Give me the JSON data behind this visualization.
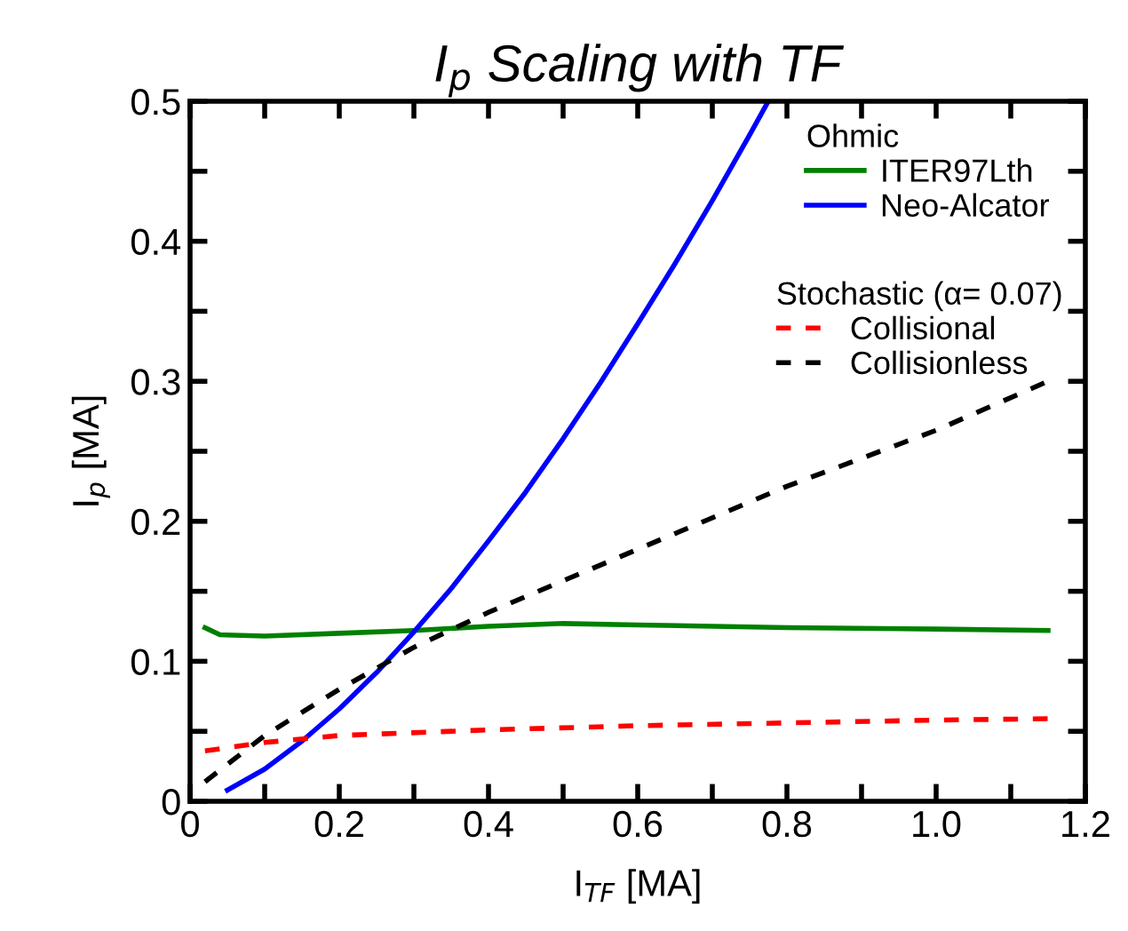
{
  "chart_data": {
    "type": "line",
    "title": "I$_{p}$ Scaling with TF",
    "xlabel": "I$_{TF}$ [MA]",
    "ylabel": "I$_{p}$ [MA]",
    "legend_title": "Ohmic",
    "annotations": [
      "Stochastic (α= 0.07)"
    ],
    "xlim": [
      0,
      1.2
    ],
    "ylim": [
      0,
      0.5
    ],
    "xticks": [
      0,
      {
        "value": 0.1,
        "label": null
      },
      0.2,
      {
        "value": 0.3,
        "label": null
      },
      0.4,
      {
        "value": 0.5,
        "label": null
      },
      0.6,
      {
        "value": 0.7,
        "label": null
      },
      0.8,
      {
        "value": 0.9,
        "label": null
      },
      {
        "value": 1.0,
        "label": "1.0"
      },
      {
        "value": 1.1,
        "label": null
      },
      1.2
    ],
    "yticks": [
      0,
      {
        "value": 0.05,
        "label": null
      },
      0.1,
      {
        "value": 0.15,
        "label": null
      },
      0.2,
      {
        "value": 0.25,
        "label": null
      },
      0.3,
      {
        "value": 0.35,
        "label": null
      },
      0.4,
      {
        "value": 0.45,
        "label": null
      },
      0.5
    ],
    "grid": false,
    "legend": "top right",
    "marker": "none",
    "series": [
      {
        "name": "ITER97Lth",
        "color": "#008000",
        "line_style": "solid",
        "x": [
          0.02,
          0.04,
          0.1,
          0.2,
          0.3,
          0.4,
          0.5,
          0.6,
          0.8,
          1.0,
          1.15
        ],
        "values": [
          0.124,
          0.119,
          0.118,
          0.12,
          0.122,
          0.125,
          0.127,
          0.126,
          0.124,
          0.123,
          0.122
        ]
      },
      {
        "name": "Neo-Alcator",
        "color": "#0000ff",
        "line_style": "solid",
        "x": [
          0.05,
          0.1,
          0.15,
          0.2,
          0.25,
          0.3,
          0.35,
          0.4,
          0.45,
          0.5,
          0.55,
          0.6,
          0.65,
          0.7,
          0.75,
          0.775
        ],
        "values": [
          0.008,
          0.023,
          0.043,
          0.066,
          0.092,
          0.121,
          0.152,
          0.186,
          0.221,
          0.259,
          0.299,
          0.341,
          0.384,
          0.429,
          0.476,
          0.5
        ]
      },
      {
        "name": "Collisional",
        "color": "#ff0000",
        "line_style": "dashed",
        "x": [
          0.02,
          0.1,
          0.2,
          0.4,
          0.6,
          0.8,
          1.0,
          1.15
        ],
        "values": [
          0.036,
          0.042,
          0.047,
          0.051,
          0.054,
          0.056,
          0.058,
          0.059
        ]
      },
      {
        "name": "Collisionless",
        "color": "#000000",
        "line_style": "dashed",
        "x": [
          0.02,
          0.1,
          0.2,
          0.3,
          0.4,
          0.6,
          0.8,
          1.0,
          1.15
        ],
        "values": [
          0.014,
          0.047,
          0.08,
          0.11,
          0.135,
          0.18,
          0.225,
          0.265,
          0.3
        ]
      }
    ]
  }
}
